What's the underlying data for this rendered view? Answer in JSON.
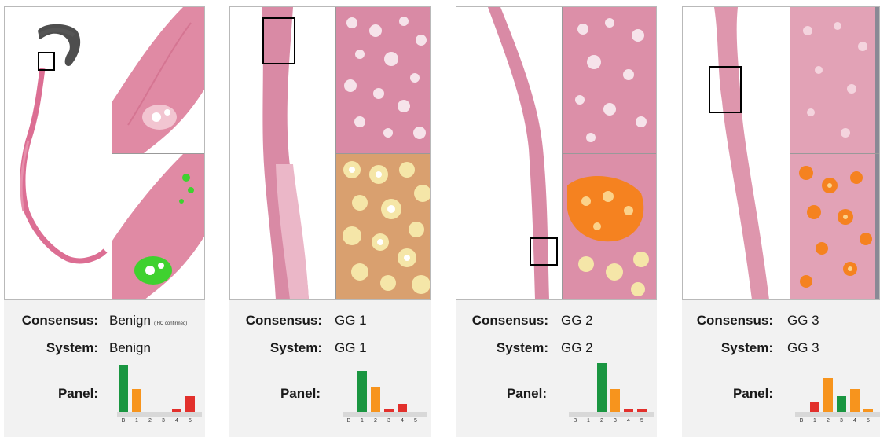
{
  "labels": {
    "consensus": "Consensus:",
    "system": "System:",
    "panel": "Panel:"
  },
  "colors": {
    "green": "#1a9641",
    "orange": "#f7941d",
    "red": "#e2302c",
    "tissue": "#e4a1b5",
    "highlight_green": "#3fd12f",
    "highlight_orange": "#f58220"
  },
  "grade_ticks": [
    "B",
    "1",
    "2",
    "3",
    "4",
    "5"
  ],
  "cases": [
    {
      "consensus": "Benign",
      "consensus_note": "(IHC confirmed)",
      "system": "Benign",
      "panel": [
        {
          "value": 0.95,
          "color": "green"
        },
        {
          "value": 0.46,
          "color": "orange"
        },
        {
          "value": 0,
          "color": "orange"
        },
        {
          "value": 0,
          "color": "orange"
        },
        {
          "value": 0.07,
          "color": "red"
        },
        {
          "value": 0.32,
          "color": "red"
        }
      ]
    },
    {
      "consensus": "GG 1",
      "consensus_note": "",
      "system": "GG 1",
      "panel": [
        {
          "value": 0,
          "color": "green"
        },
        {
          "value": 0.84,
          "color": "green"
        },
        {
          "value": 0.5,
          "color": "orange"
        },
        {
          "value": 0.06,
          "color": "red"
        },
        {
          "value": 0.16,
          "color": "red"
        },
        {
          "value": 0,
          "color": "red"
        }
      ]
    },
    {
      "consensus": "GG 2",
      "consensus_note": "",
      "system": "GG 2",
      "panel": [
        {
          "value": 0,
          "color": "green"
        },
        {
          "value": 0,
          "color": "green"
        },
        {
          "value": 1.0,
          "color": "green"
        },
        {
          "value": 0.46,
          "color": "orange"
        },
        {
          "value": 0.06,
          "color": "red"
        },
        {
          "value": 0.06,
          "color": "red"
        }
      ]
    },
    {
      "consensus": "GG 3",
      "consensus_note": "",
      "system": "GG 3",
      "panel": [
        {
          "value": 0,
          "color": "green"
        },
        {
          "value": 0.2,
          "color": "red"
        },
        {
          "value": 0.7,
          "color": "orange"
        },
        {
          "value": 0.32,
          "color": "green"
        },
        {
          "value": 0.46,
          "color": "orange"
        },
        {
          "value": 0.06,
          "color": "orange"
        }
      ]
    }
  ]
}
